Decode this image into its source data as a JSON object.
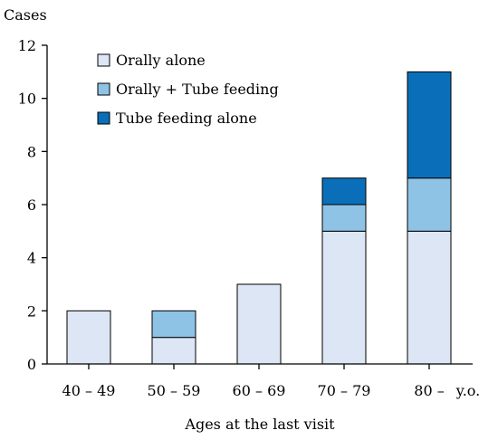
{
  "chart_data": {
    "type": "bar",
    "stacked": true,
    "ylabel": "Cases",
    "xlabel": "Ages at the last visit",
    "x_unit": "y.o.",
    "ylim": [
      0,
      12
    ],
    "yticks": [
      0,
      2,
      4,
      6,
      8,
      10,
      12
    ],
    "categories": [
      "40 – 49",
      "50 – 59",
      "60 – 69",
      "70 – 79",
      "80 –"
    ],
    "series": [
      {
        "name": "Orally alone",
        "color": "#dce6f4",
        "values": [
          2,
          1,
          3,
          5,
          5
        ]
      },
      {
        "name": "Orally + Tube feeding",
        "color": "#8fc3e6",
        "values": [
          0,
          1,
          0,
          1,
          2
        ]
      },
      {
        "name": "Tube feeding alone",
        "color": "#0a6fb8",
        "values": [
          0,
          0,
          0,
          1,
          4
        ]
      }
    ],
    "legend_position": "top-left",
    "grid": false
  }
}
